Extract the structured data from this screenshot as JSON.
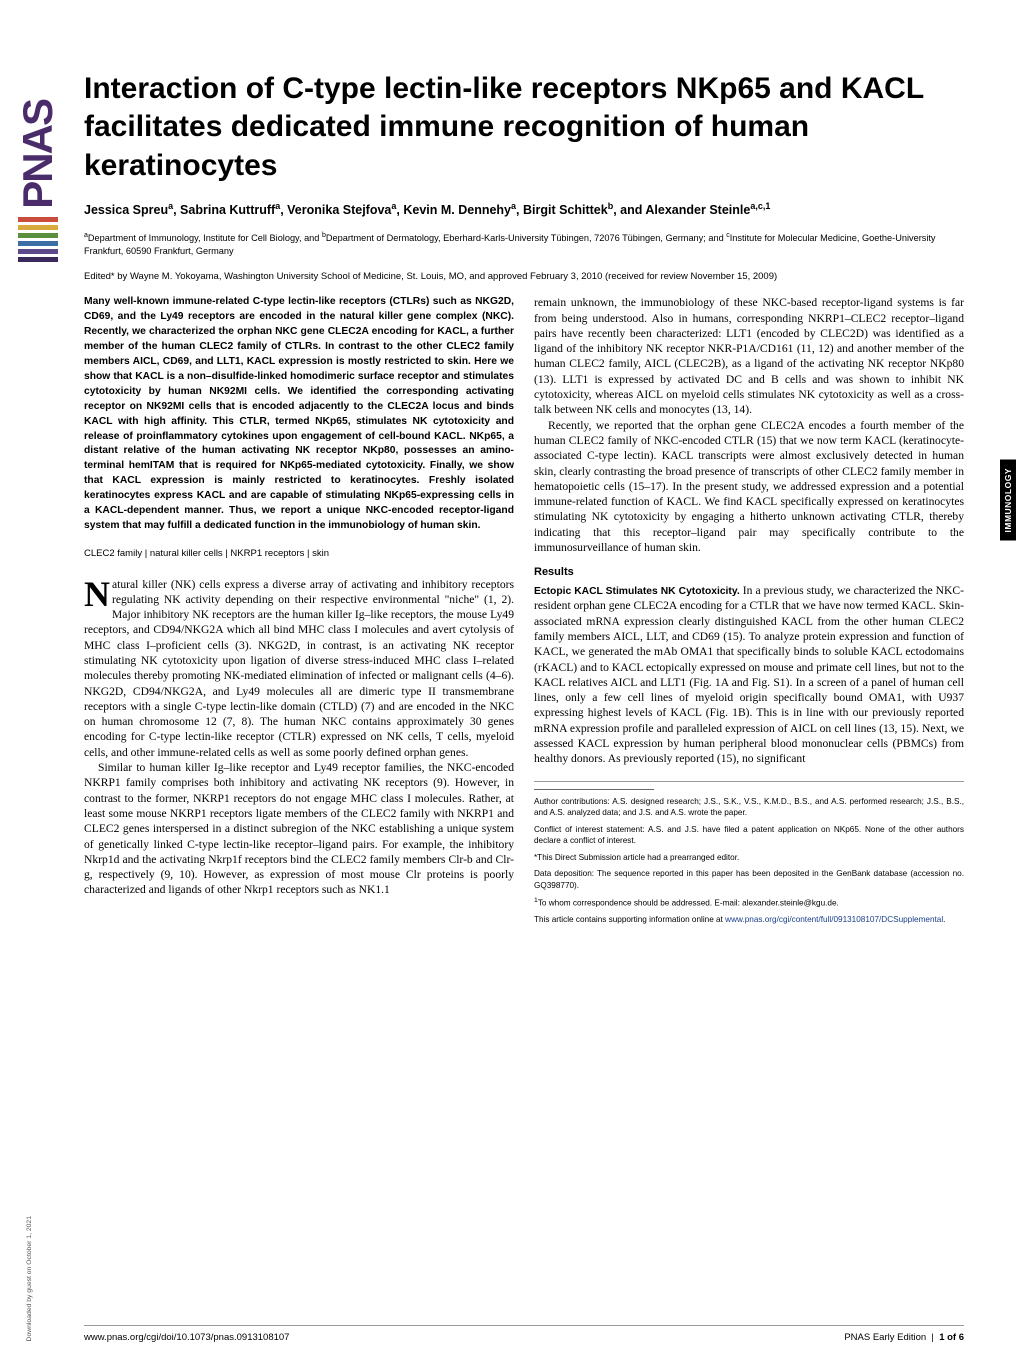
{
  "logo": {
    "text": "PNAS",
    "stripe_colors": [
      "#c94d3a",
      "#d8a93b",
      "#5a8f3d",
      "#3b6ea5",
      "#5c4a8a",
      "#3a2a5c"
    ]
  },
  "side_tab": "IMMUNOLOGY",
  "vertical_note": "Downloaded by guest on October 1, 2021",
  "title": "Interaction of C-type lectin-like receptors NKp65 and KACL facilitates dedicated immune recognition of human keratinocytes",
  "authors_html": "Jessica Spreu<sup>a</sup>, Sabrina Kuttruff<sup>a</sup>, Veronika Stejfova<sup>a</sup>, Kevin M. Dennehy<sup>a</sup>, Birgit Schittek<sup>b</sup>, and Alexander Steinle<sup>a,c,1</sup>",
  "affiliations_html": "<sup>a</sup>Department of Immunology, Institute for Cell Biology, and <sup>b</sup>Department of Dermatology, Eberhard-Karls-University Tübingen, 72076 Tübingen, Germany; and <sup>c</sup>Institute for Molecular Medicine, Goethe-University Frankfurt, 60590 Frankfurt, Germany",
  "edited": "Edited* by Wayne M. Yokoyama, Washington University School of Medicine, St. Louis, MO, and approved February 3, 2010 (received for review November 15, 2009)",
  "abstract": "Many well-known immune-related C-type lectin-like receptors (CTLRs) such as NKG2D, CD69, and the Ly49 receptors are encoded in the natural killer gene complex (NKC). Recently, we characterized the orphan NKC gene CLEC2A encoding for KACL, a further member of the human CLEC2 family of CTLRs. In contrast to the other CLEC2 family members AICL, CD69, and LLT1, KACL expression is mostly restricted to skin. Here we show that KACL is a non–disulfide-linked homodimeric surface receptor and stimulates cytotoxicity by human NK92MI cells. We identified the corresponding activating receptor on NK92MI cells that is encoded adjacently to the CLEC2A locus and binds KACL with high affinity. This CTLR, termed NKp65, stimulates NK cytotoxicity and release of proinflammatory cytokines upon engagement of cell-bound KACL. NKp65, a distant relative of the human activating NK receptor NKp80, possesses an amino-terminal hemITAM that is required for NKp65-mediated cytotoxicity. Finally, we show that KACL expression is mainly restricted to keratinocytes. Freshly isolated keratinocytes express KACL and are capable of stimulating NKp65-expressing cells in a KACL-dependent manner. Thus, we report a unique NKC-encoded receptor-ligand system that may fulfill a dedicated function in the immunobiology of human skin.",
  "keywords": "CLEC2 family | natural killer cells | NKRP1 receptors | skin",
  "dropcap": "N",
  "body": {
    "p1": "atural killer (NK) cells express a diverse array of activating and inhibitory receptors regulating NK activity depending on their respective environmental \"niche\" (1, 2). Major inhibitory NK receptors are the human killer Ig–like receptors, the mouse Ly49 receptors, and CD94/NKG2A which all bind MHC class I molecules and avert cytolysis of MHC class I–proficient cells (3). NKG2D, in contrast, is an activating NK receptor stimulating NK cytotoxicity upon ligation of diverse stress-induced MHC class I–related molecules thereby promoting NK-mediated elimination of infected or malignant cells (4–6). NKG2D, CD94/NKG2A, and Ly49 molecules all are dimeric type II transmembrane receptors with a single C-type lectin-like domain (CTLD) (7) and are encoded in the NKC on human chromosome 12 (7, 8). The human NKC contains approximately 30 genes encoding for C-type lectin-like receptor (CTLR) expressed on NK cells, T cells, myeloid cells, and other immune-related cells as well as some poorly defined orphan genes.",
    "p2": "Similar to human killer Ig–like receptor and Ly49 receptor families, the NKC-encoded NKRP1 family comprises both inhibitory and activating NK receptors (9). However, in contrast to the former, NKRP1 receptors do not engage MHC class I molecules. Rather, at least some mouse NKRP1 receptors ligate members of the CLEC2 family with NKRP1 and CLEC2 genes interspersed in a distinct subregion of the NKC establishing a unique system of genetically linked C-type lectin-like receptor–ligand pairs. For example, the inhibitory Nkrp1d and the activating Nkrp1f receptors bind the CLEC2 family members Clr-b and Clr-g, respectively (9, 10). However, as expression of most mouse Clr proteins is poorly characterized and ligands of other Nkrp1 receptors such as NK1.1",
    "p3": "remain unknown, the immunobiology of these NKC-based receptor-ligand systems is far from being understood. Also in humans, corresponding NKRP1–CLEC2 receptor–ligand pairs have recently been characterized: LLT1 (encoded by CLEC2D) was identified as a ligand of the inhibitory NK receptor NKR-P1A/CD161 (11, 12) and another member of the human CLEC2 family, AICL (CLEC2B), as a ligand of the activating NK receptor NKp80 (13). LLT1 is expressed by activated DC and B cells and was shown to inhibit NK cytotoxicity, whereas AICL on myeloid cells stimulates NK cytotoxicity as well as a cross-talk between NK cells and monocytes (13, 14).",
    "p4": "Recently, we reported that the orphan gene CLEC2A encodes a fourth member of the human CLEC2 family of NKC-encoded CTLR (15) that we now term KACL (keratinocyte-associated C-type lectin). KACL transcripts were almost exclusively detected in human skin, clearly contrasting the broad presence of transcripts of other CLEC2 family member in hematopoietic cells (15–17). In the present study, we addressed expression and a potential immune-related function of KACL. We find KACL specifically expressed on keratinocytes stimulating NK cytotoxicity by engaging a hitherto unknown activating CTLR, thereby indicating that this receptor–ligand pair may specifically contribute to the immunosurveillance of human skin."
  },
  "results": {
    "head": "Results",
    "sub1": "Ectopic KACL Stimulates NK Cytotoxicity.",
    "r1": " In a previous study, we characterized the NKC-resident orphan gene CLEC2A encoding for a CTLR that we have now termed KACL. Skin-associated mRNA expression clearly distinguished KACL from the other human CLEC2 family members AICL, LLT, and CD69 (15). To analyze protein expression and function of KACL, we generated the mAb OMA1 that specifically binds to soluble KACL ectodomains (rKACL) and to KACL ectopically expressed on mouse and primate cell lines, but not to the KACL relatives AICL and LLT1 (Fig. 1A and Fig. S1). In a screen of a panel of human cell lines, only a few cell lines of myeloid origin specifically bound OMA1, with U937 expressing highest levels of KACL (Fig. 1B). This is in line with our previously reported mRNA expression profile and paralleled expression of AICL on cell lines (13, 15). Next, we assessed KACL expression by human peripheral blood mononuclear cells (PBMCs) from healthy donors. As previously reported (15), no significant"
  },
  "footnotes": {
    "contrib": "Author contributions: A.S. designed research; J.S., S.K., V.S., K.M.D., B.S., and A.S. performed research; J.S., B.S., and A.S. analyzed data; and J.S. and A.S. wrote the paper.",
    "conflict": "Conflict of interest statement: A.S. and J.S. have filed a patent application on NKp65. None of the other authors declare a conflict of interest.",
    "direct": "*This Direct Submission article had a prearranged editor.",
    "data": "Data deposition: The sequence reported in this paper has been deposited in the GenBank database (accession no. GQ398770).",
    "corresp": "1To whom correspondence should be addressed. E-mail: alexander.steinle@kgu.de.",
    "supp_a": "This article contains supporting information online at ",
    "supp_link": "www.pnas.org/cgi/content/full/0913108107/DCSupplemental",
    "supp_b": "."
  },
  "footer": {
    "left": "www.pnas.org/cgi/doi/10.1073/pnas.0913108107",
    "right_a": "PNAS Early Edition",
    "right_b": "1 of 6"
  }
}
